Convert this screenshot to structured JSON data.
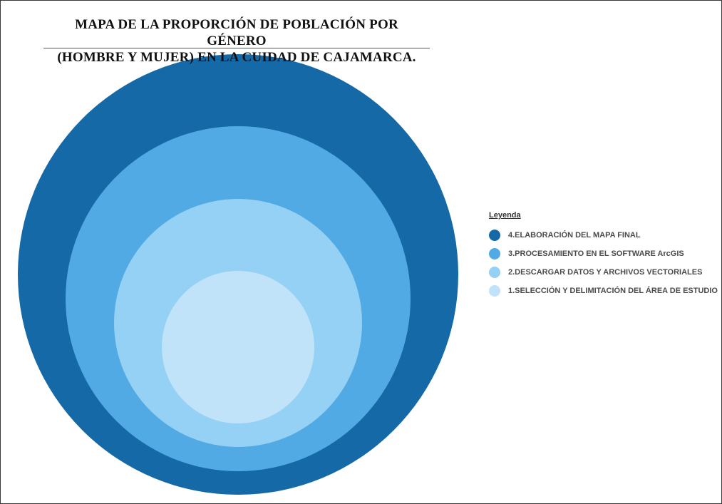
{
  "title": {
    "line1": "MAPA DE LA PROPORCIÓN DE POBLACIÓN POR GÉNERO",
    "line2": "(HOMBRE Y MUJER) EN LA CUIDAD DE CAJAMARCA."
  },
  "legend": {
    "heading": "Leyenda",
    "items": [
      {
        "label": "4.ELABORACIÓN DEL MAPA FINAL",
        "color": "#1569a6"
      },
      {
        "label": "3.PROCESAMIENTO EN EL SOFTWARE ArcGIS",
        "color": "#52aae4"
      },
      {
        "label": "2.DESCARGAR DATOS Y ARCHIVOS VECTORIALES",
        "color": "#95d0f5"
      },
      {
        "label": "1.SELECCIÓN  Y DELIMITACIÓN DEL ÁREA DE ESTUDIO",
        "color": "#c0e3f9"
      }
    ]
  },
  "diagram": {
    "type": "nested-circles",
    "levels": [
      {
        "step": 4,
        "color": "#1569a6"
      },
      {
        "step": 3,
        "color": "#52aae4"
      },
      {
        "step": 2,
        "color": "#95d0f5"
      },
      {
        "step": 1,
        "color": "#c0e3f9"
      }
    ]
  }
}
